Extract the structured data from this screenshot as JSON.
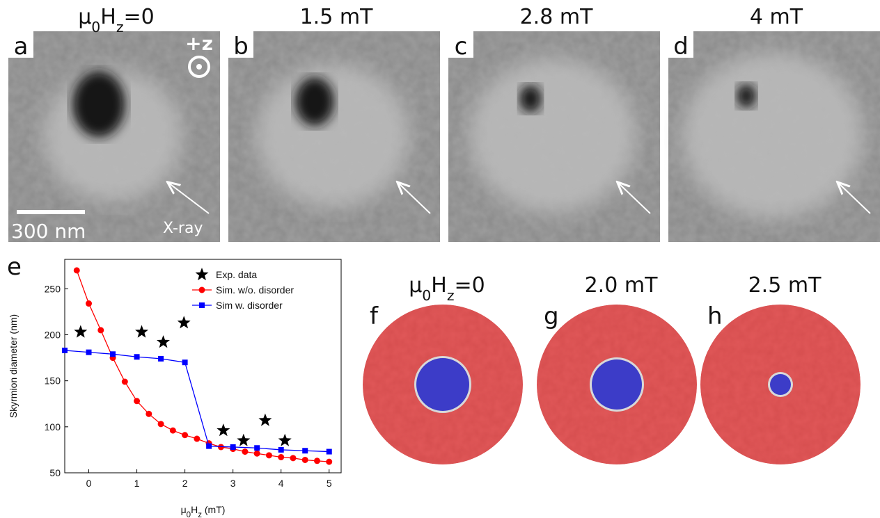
{
  "panels": [
    {
      "letter": "a",
      "title": [
        {
          "t": "μ"
        },
        {
          "t": "0",
          "sub": true
        },
        {
          "t": "H"
        },
        {
          "t": "z",
          "sub": true
        },
        {
          "t": "=0"
        }
      ]
    },
    {
      "letter": "b",
      "title": [
        {
          "t": "1.5 mT"
        }
      ]
    },
    {
      "letter": "c",
      "title": [
        {
          "t": "2.8 mT"
        }
      ]
    },
    {
      "letter": "d",
      "title": [
        {
          "t": "4 mT"
        }
      ]
    }
  ],
  "z_label": "+z",
  "scale_bar": "300 nm",
  "xray_label": "X-ray",
  "chart_letter": "e",
  "sim_panels": [
    {
      "letter": "f",
      "title": [
        {
          "t": "μ"
        },
        {
          "t": "0",
          "sub": true
        },
        {
          "t": "H"
        },
        {
          "t": "z",
          "sub": true
        },
        {
          "t": "=0"
        }
      ]
    },
    {
      "letter": "g",
      "title": [
        {
          "t": "2.0 mT"
        }
      ]
    },
    {
      "letter": "h",
      "title": [
        {
          "t": "2.5 mT"
        }
      ]
    }
  ],
  "chart_data": {
    "type": "line",
    "x_label": [
      {
        "t": "μ"
      },
      {
        "t": "0",
        "sub": true
      },
      {
        "t": "H"
      },
      {
        "t": "z",
        "sub": true
      },
      {
        "t": " (mT)"
      }
    ],
    "y_label": "Skyrmion diameter (nm)",
    "xlim": [
      -0.5,
      5.25
    ],
    "ylim": [
      50,
      282
    ],
    "xticks": [
      0,
      1,
      2,
      3,
      4,
      5
    ],
    "yticks": [
      50,
      100,
      150,
      200,
      250
    ],
    "legend": "top-right",
    "series": [
      {
        "name": "Exp.  data",
        "color": "#000000",
        "marker": "star",
        "line": false,
        "x": [
          -0.17,
          1.1,
          1.55,
          1.98,
          2.8,
          3.22,
          3.67,
          4.08
        ],
        "values": [
          203,
          203,
          192,
          213,
          96,
          85,
          107,
          85
        ]
      },
      {
        "name": "Sim. w/o. disorder",
        "color": "#ff0000",
        "marker": "circle",
        "line": true,
        "x": [
          -0.25,
          0,
          0.25,
          0.5,
          0.75,
          1,
          1.25,
          1.5,
          1.75,
          2,
          2.25,
          2.5,
          2.75,
          3,
          3.25,
          3.5,
          3.75,
          4,
          4.25,
          4.5,
          4.75,
          5
        ],
        "values": [
          270,
          234,
          205,
          175,
          149,
          128,
          114,
          103,
          96,
          91,
          87,
          82,
          78,
          76,
          73,
          71,
          69,
          67,
          66,
          64,
          63,
          62
        ]
      },
      {
        "name": "Sim w. disorder",
        "color": "#0000ff",
        "marker": "square",
        "line": true,
        "x": [
          -0.5,
          0,
          0.5,
          1,
          1.5,
          2,
          2.5,
          3,
          3.5,
          4,
          4.5,
          5
        ],
        "values": [
          183,
          181,
          179,
          176,
          174,
          170,
          79,
          78,
          77,
          75,
          74,
          73
        ]
      }
    ]
  }
}
